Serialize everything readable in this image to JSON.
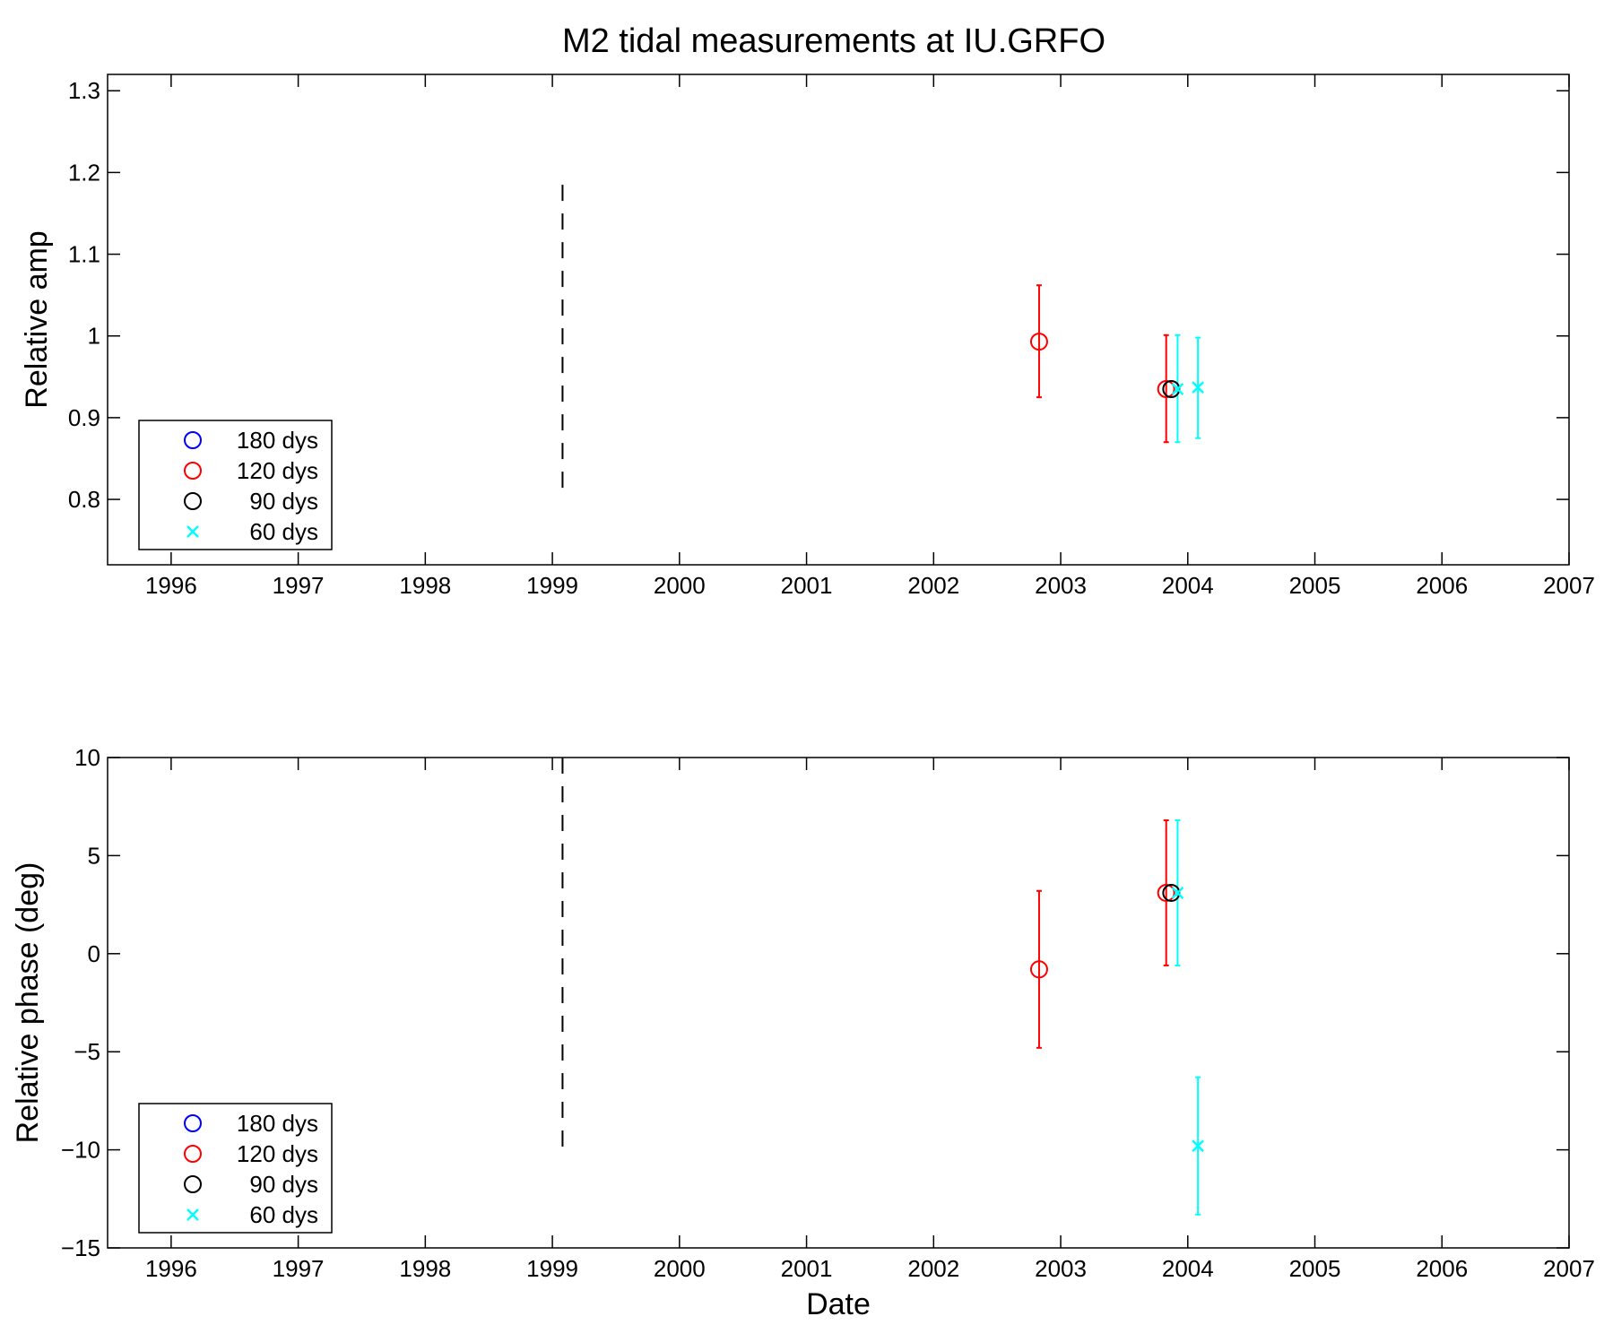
{
  "chart_data": [
    {
      "type": "scatter",
      "title": "M2 tidal measurements at IU.GRFO",
      "xlabel": "",
      "ylabel": "Relative amp",
      "xlim": [
        1995.5,
        2007.0
      ],
      "ylim": [
        0.72,
        1.32
      ],
      "x_ticks": [
        1996,
        1997,
        1998,
        1999,
        2000,
        2001,
        2002,
        2003,
        2004,
        2005,
        2006,
        2007
      ],
      "y_ticks": [
        0.8,
        0.9,
        1,
        1.1,
        1.2,
        1.3
      ],
      "y_tick_labels": [
        "0.8",
        "0.9",
        "1",
        "1.1",
        "1.2",
        "1.3"
      ],
      "grid": false,
      "legend_position": "bottom-left",
      "vline": {
        "x": 1999.08,
        "y_range": [
          0.8,
          1.185
        ],
        "style": "dashed",
        "color": "#000000"
      },
      "series": [
        {
          "name": "180 dys",
          "marker": "circle",
          "color": "#0000ff",
          "points": []
        },
        {
          "name": "120 dys",
          "marker": "circle",
          "color": "#ff0000",
          "points": [
            {
              "x": 2002.83,
              "y": 0.993,
              "err_low": 0.925,
              "err_high": 1.062
            },
            {
              "x": 2003.83,
              "y": 0.935,
              "err_low": 0.87,
              "err_high": 1.001
            }
          ]
        },
        {
          "name": "90 dys",
          "marker": "circle",
          "color": "#000000",
          "points": [
            {
              "x": 2003.87,
              "y": 0.935
            }
          ]
        },
        {
          "name": "60 dys",
          "marker": "x",
          "color": "#00ffff",
          "points": [
            {
              "x": 2003.92,
              "y": 0.935,
              "err_low": 0.87,
              "err_high": 1.001
            },
            {
              "x": 2004.08,
              "y": 0.937,
              "err_low": 0.875,
              "err_high": 0.998
            }
          ]
        }
      ]
    },
    {
      "type": "scatter",
      "title": "",
      "xlabel": "Date",
      "ylabel": "Relative phase (deg)",
      "xlim": [
        1995.5,
        2007.0
      ],
      "ylim": [
        -15,
        10
      ],
      "x_ticks": [
        1996,
        1997,
        1998,
        1999,
        2000,
        2001,
        2002,
        2003,
        2004,
        2005,
        2006,
        2007
      ],
      "y_ticks": [
        -15,
        -10,
        -5,
        0,
        5,
        10
      ],
      "y_tick_labels": [
        "−15",
        "−10",
        "−5",
        "0",
        "5",
        "10"
      ],
      "grid": false,
      "legend_position": "bottom-left",
      "vline": {
        "x": 1999.08,
        "y_range": [
          -10,
          10
        ],
        "style": "dashed",
        "color": "#000000"
      },
      "series": [
        {
          "name": "180 dys",
          "marker": "circle",
          "color": "#0000ff",
          "points": []
        },
        {
          "name": "120 dys",
          "marker": "circle",
          "color": "#ff0000",
          "points": [
            {
              "x": 2002.83,
              "y": -0.8,
              "err_low": -4.8,
              "err_high": 3.2
            },
            {
              "x": 2003.83,
              "y": 3.1,
              "err_low": -0.6,
              "err_high": 6.8
            }
          ]
        },
        {
          "name": "90 dys",
          "marker": "circle",
          "color": "#000000",
          "points": [
            {
              "x": 2003.87,
              "y": 3.1
            }
          ]
        },
        {
          "name": "60 dys",
          "marker": "x",
          "color": "#00ffff",
          "points": [
            {
              "x": 2003.92,
              "y": 3.1,
              "err_low": -0.6,
              "err_high": 6.8
            },
            {
              "x": 2004.08,
              "y": -9.8,
              "err_low": -13.3,
              "err_high": -6.3
            }
          ]
        }
      ]
    }
  ]
}
